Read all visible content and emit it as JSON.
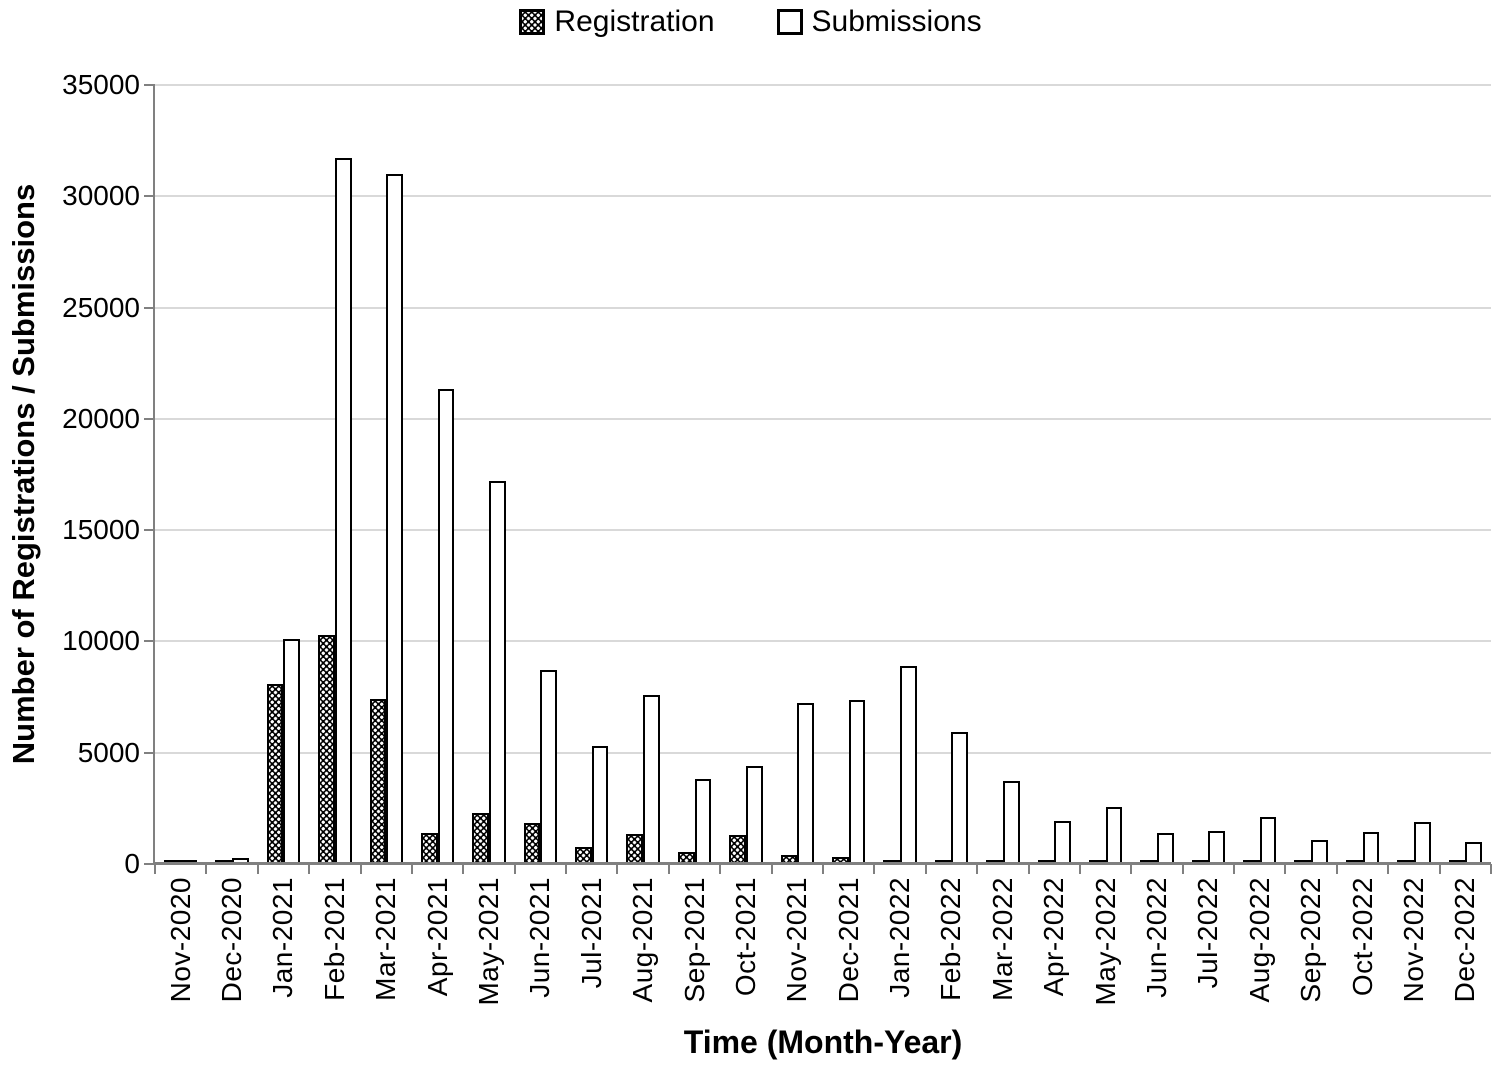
{
  "chart_data": {
    "type": "bar",
    "title": "",
    "xlabel": "Time (Month-Year)",
    "ylabel": "Number of Registrations / Submissions",
    "ylim": [
      0,
      35000
    ],
    "yticks": [
      0,
      5000,
      10000,
      15000,
      20000,
      25000,
      30000,
      35000
    ],
    "grid": "horizontal light-gray lines at every 5000",
    "legend_position": "top-center",
    "categories": [
      "Nov-2020",
      "Dec-2020",
      "Jan-2021",
      "Feb-2021",
      "Mar-2021",
      "Apr-2021",
      "May-2021",
      "Jun-2021",
      "Jul-2021",
      "Aug-2021",
      "Sep-2021",
      "Oct-2021",
      "Nov-2021",
      "Dec-2021",
      "Jan-2022",
      "Feb-2022",
      "Mar-2022",
      "Apr-2022",
      "May-2022",
      "Jun-2022",
      "Jul-2022",
      "Aug-2022",
      "Sep-2022",
      "Oct-2022",
      "Nov-2022",
      "Dec-2022"
    ],
    "series": [
      {
        "name": "Registration",
        "marker": "checkered-square-icon",
        "fill": "black with white dot (checkered) pattern",
        "values": [
          50,
          150,
          8100,
          10300,
          7400,
          1400,
          2300,
          1850,
          750,
          1350,
          550,
          1300,
          400,
          300,
          100,
          50,
          80,
          140,
          160,
          60,
          40,
          90,
          40,
          60,
          70,
          50
        ]
      },
      {
        "name": "Submissions",
        "marker": "open-square-icon",
        "fill": "white with black outline",
        "values": [
          80,
          250,
          10100,
          31700,
          31000,
          21350,
          17200,
          8700,
          5300,
          7600,
          3800,
          4400,
          7250,
          7350,
          8900,
          5950,
          3750,
          1950,
          2550,
          1400,
          1500,
          2100,
          1100,
          1450,
          1900,
          1000
        ]
      }
    ],
    "colors": {
      "bar_outline": "#000000",
      "submissions_fill": "#ffffff",
      "registration_fill": "#000000",
      "registration_dots": "#ffffff",
      "gridline": "#d9d9d9",
      "axis": "#808080",
      "text": "#000000",
      "background": "#ffffff"
    }
  }
}
